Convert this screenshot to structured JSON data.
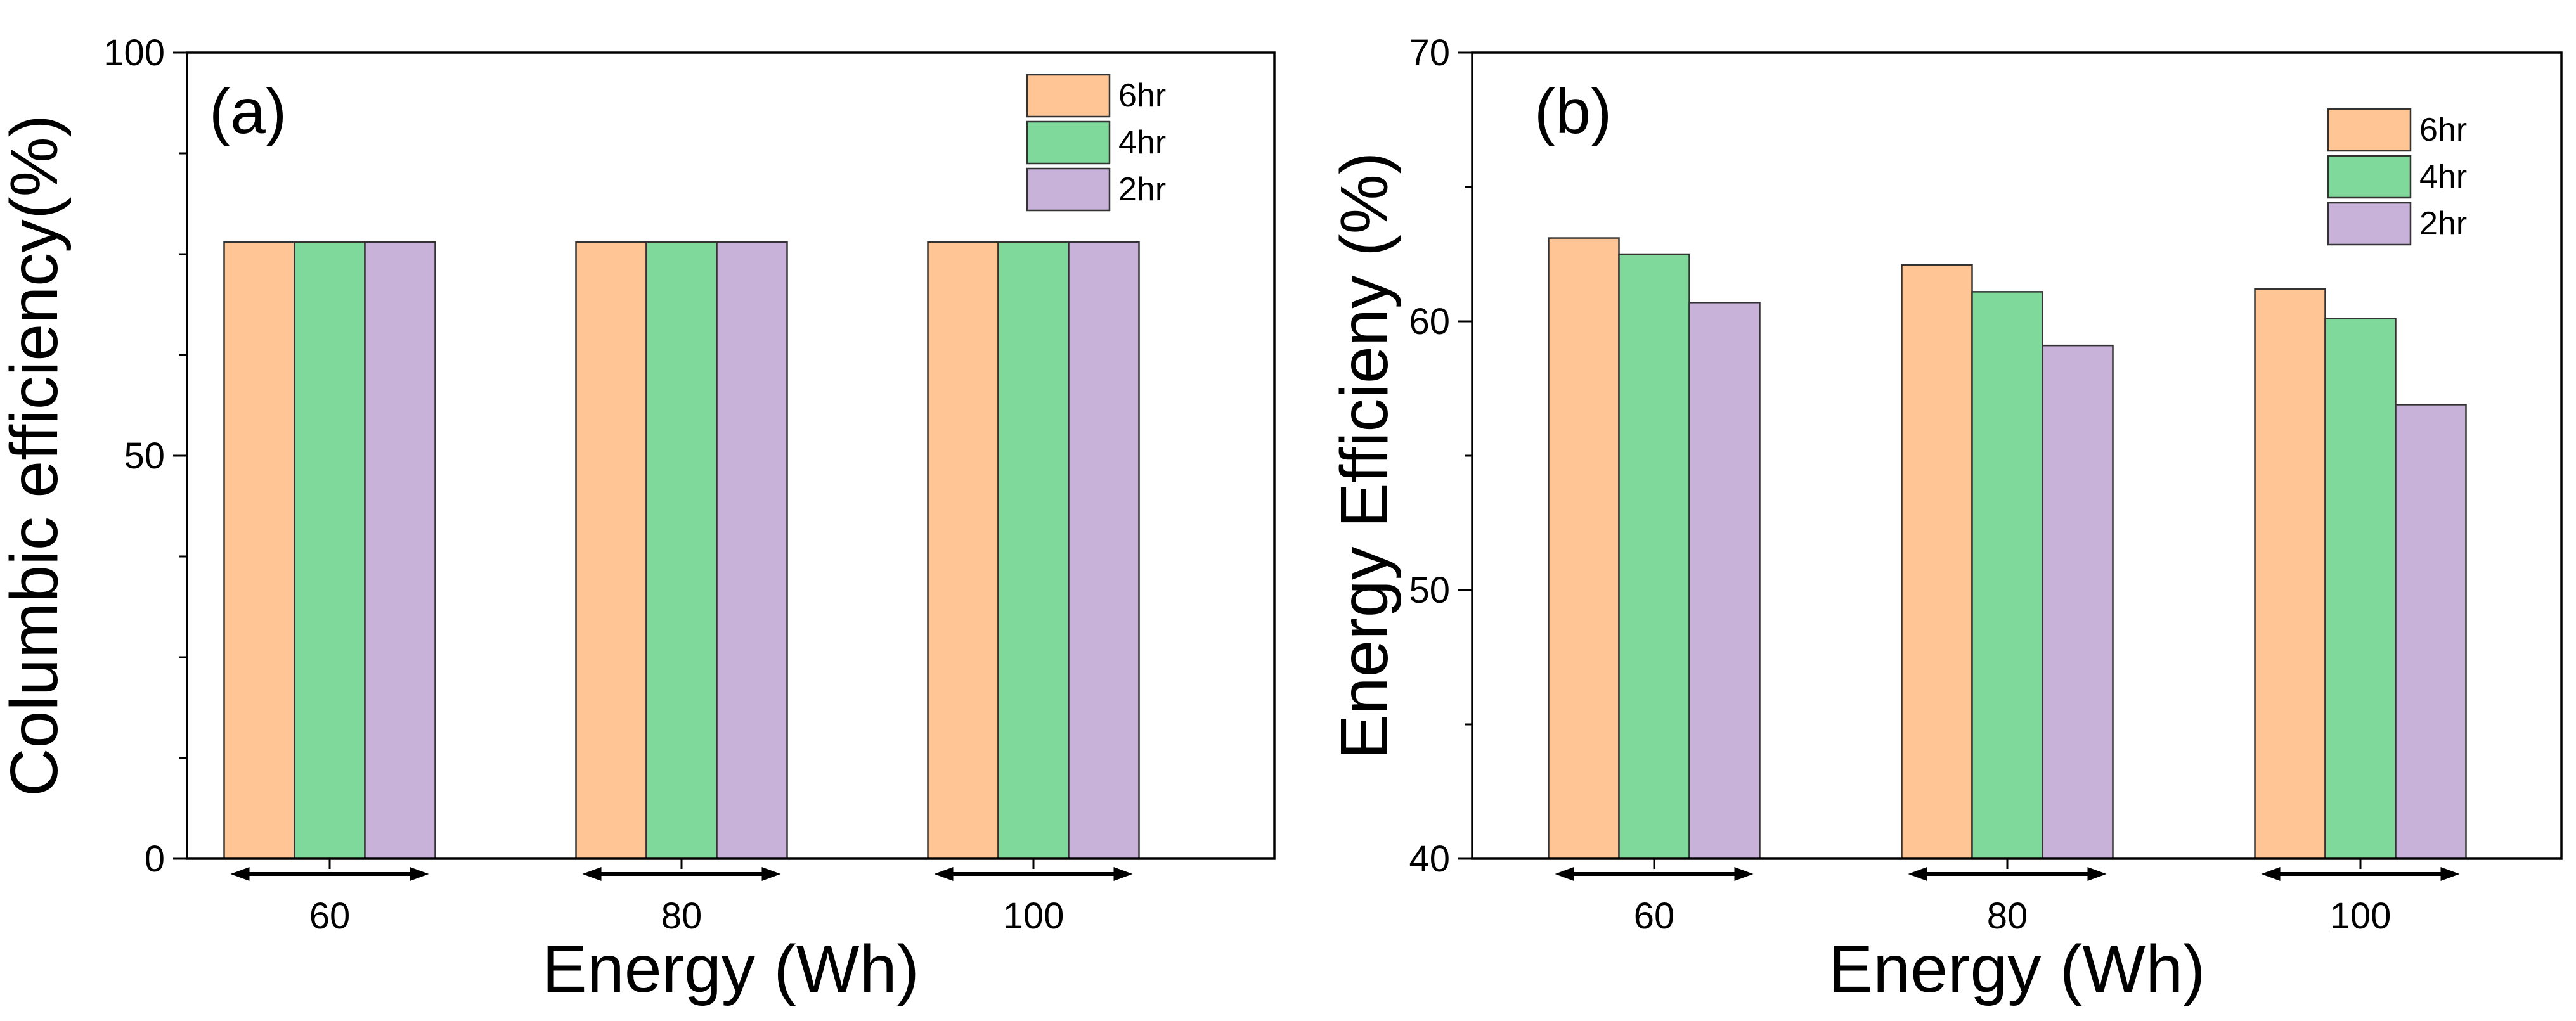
{
  "chart_data": [
    {
      "type": "bar",
      "panel_label": "(a)",
      "title": "",
      "xlabel": "Energy (Wh)",
      "ylabel": "Columbic efficiency(%)",
      "categories": [
        "60",
        "80",
        "100"
      ],
      "ylim": [
        0,
        100
      ],
      "yticks": [
        0,
        50,
        100
      ],
      "ytick_labels": [
        "0",
        "50",
        "100"
      ],
      "series": [
        {
          "name": "6hr",
          "color": "#FFC594",
          "values": [
            76.5,
            76.5,
            76.5
          ]
        },
        {
          "name": "4hr",
          "color": "#7FD99A",
          "values": [
            76.5,
            76.5,
            76.5
          ]
        },
        {
          "name": "2hr",
          "color": "#C8B2DA",
          "values": [
            76.5,
            76.5,
            76.5
          ]
        }
      ],
      "legend_position": "top-right",
      "grid": false
    },
    {
      "type": "bar",
      "panel_label": "(b)",
      "title": "",
      "xlabel": "Energy (Wh)",
      "ylabel": "Energy Efficieny (%)",
      "categories": [
        "60",
        "80",
        "100"
      ],
      "ylim": [
        40,
        70
      ],
      "yticks": [
        40,
        50,
        60,
        70
      ],
      "ytick_labels": [
        "40",
        "50",
        "60",
        "70"
      ],
      "series": [
        {
          "name": "6hr",
          "color": "#FFC594",
          "values": [
            63.1,
            62.1,
            61.2
          ]
        },
        {
          "name": "4hr",
          "color": "#7FD99A",
          "values": [
            62.5,
            61.1,
            60.1
          ]
        },
        {
          "name": "2hr",
          "color": "#C8B2DA",
          "values": [
            60.7,
            59.1,
            56.9
          ]
        }
      ],
      "legend_position": "top-right",
      "grid": false
    }
  ]
}
